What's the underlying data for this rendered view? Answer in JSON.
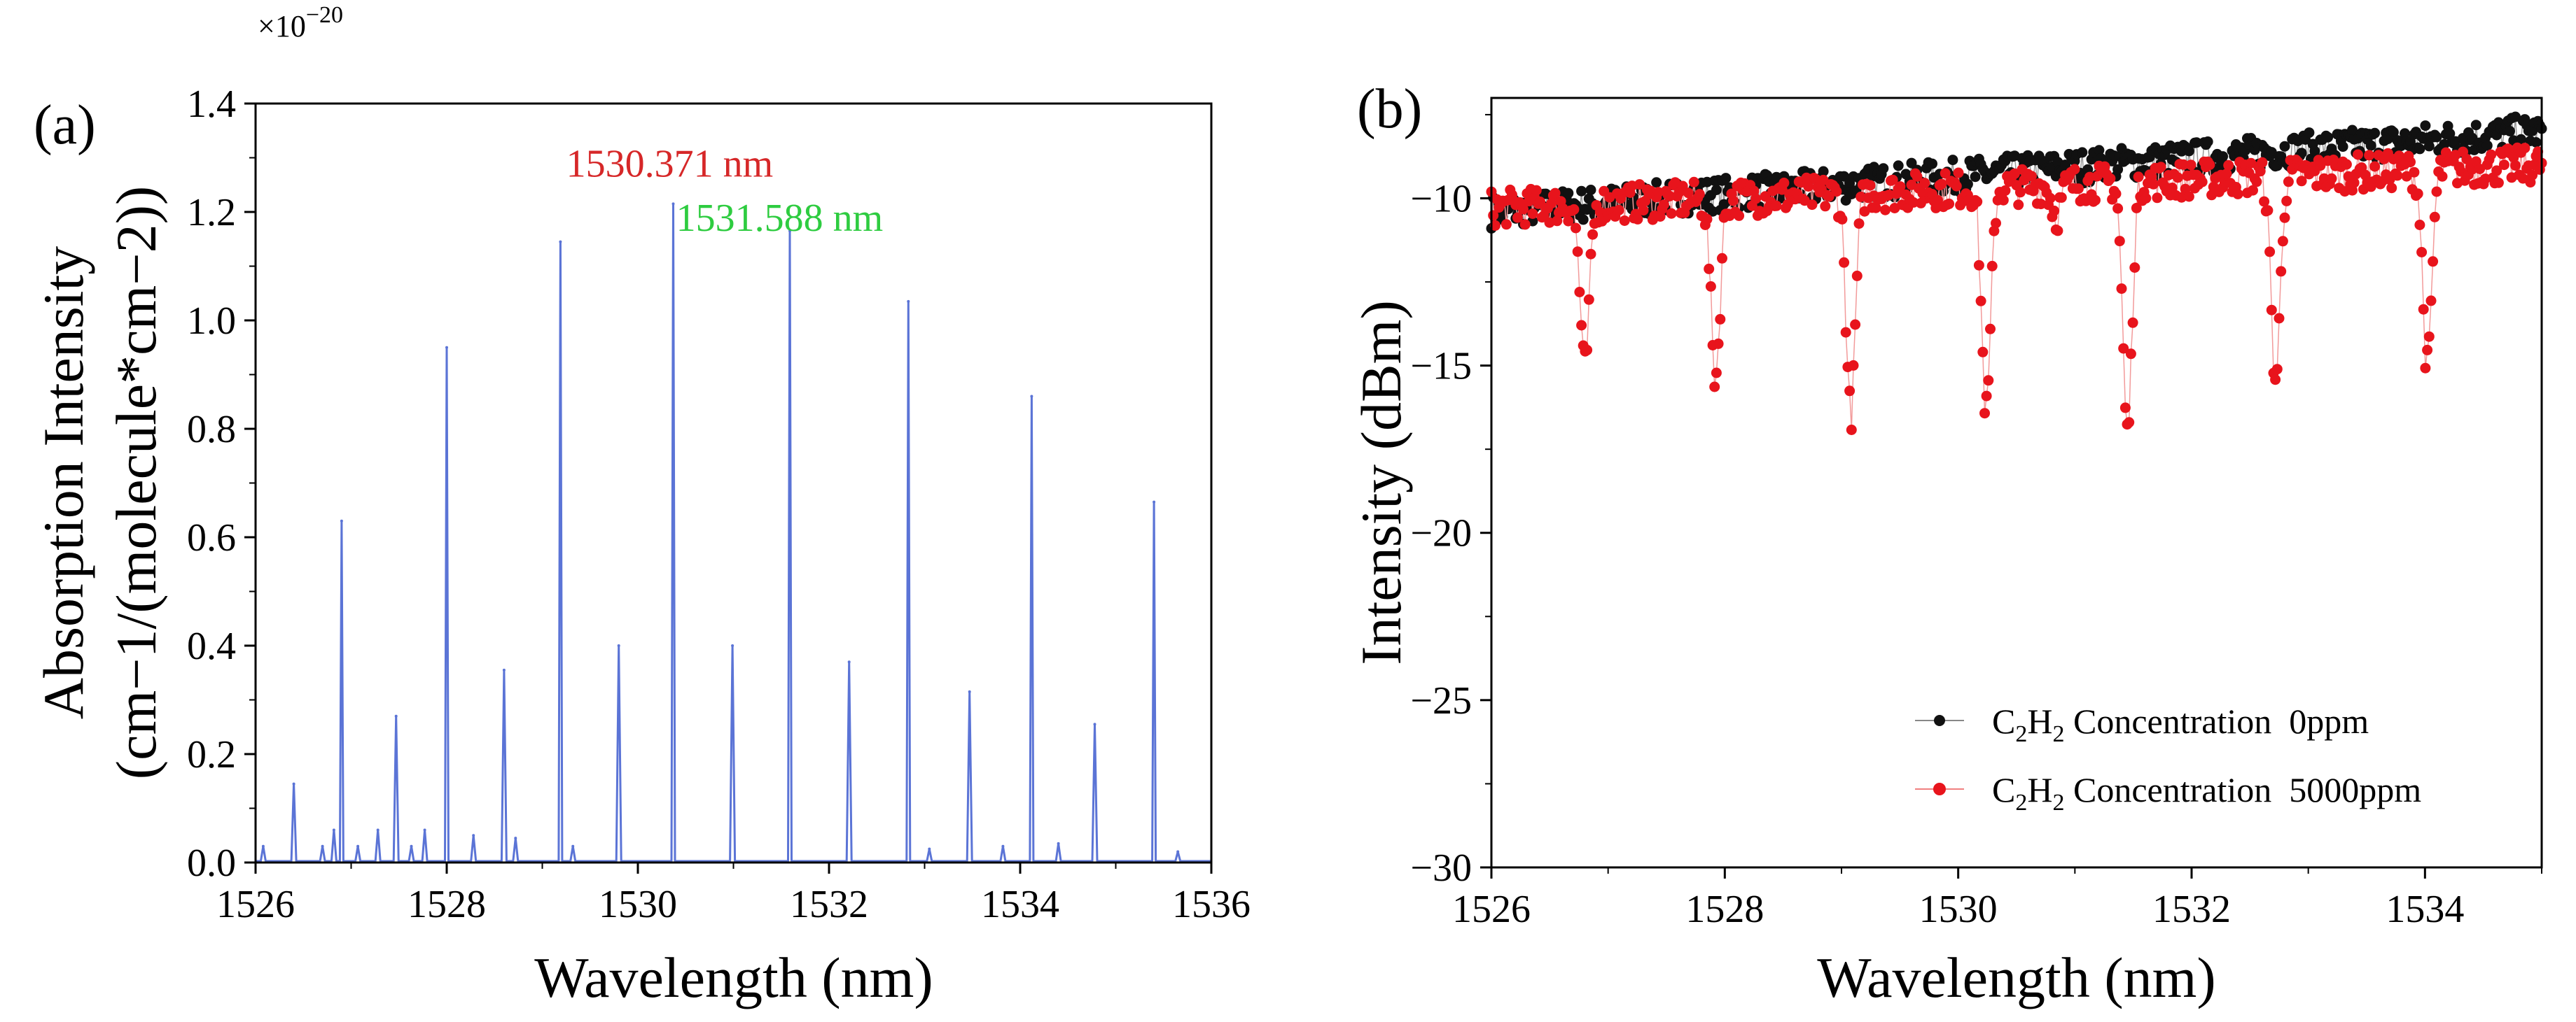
{
  "figure": {
    "panel_a_label": "(a)",
    "panel_b_label": "(b)"
  },
  "chart_data": [
    {
      "type": "line",
      "panel": "(a)",
      "xlabel": "Wavelength (nm)",
      "ylabel_line1": "Absorption Intensity",
      "ylabel_line2": "(cm−1/(molecule*cm−2))",
      "y_multiplier": "×10",
      "y_multiplier_exp": "−20",
      "xlim": [
        1526,
        1536
      ],
      "ylim": [
        0,
        1.4
      ],
      "x_ticks": [
        1526,
        1528,
        1530,
        1532,
        1534,
        1536
      ],
      "y_ticks": [
        0.0,
        0.2,
        0.4,
        0.6,
        0.8,
        1.0,
        1.2,
        1.4
      ],
      "x_tick_labels": [
        "1526",
        "1528",
        "1530",
        "1532",
        "1534",
        "1536"
      ],
      "y_tick_labels": [
        "0.0",
        "0.2",
        "0.4",
        "0.6",
        "0.8",
        "1.0",
        "1.2",
        "1.4"
      ],
      "grid": false,
      "line_color": "#5b74d6",
      "annotations": [
        {
          "text": "1530.371 nm",
          "color": "#d62728",
          "x": 1529.25,
          "y": 1.265
        },
        {
          "text": "1531.588 nm",
          "color": "#2ecc40",
          "x": 1530.4,
          "y": 1.165
        }
      ],
      "peaks": [
        {
          "x": 1526.08,
          "y": 0.03
        },
        {
          "x": 1526.4,
          "y": 0.145
        },
        {
          "x": 1526.7,
          "y": 0.03
        },
        {
          "x": 1526.82,
          "y": 0.06
        },
        {
          "x": 1526.9,
          "y": 0.63
        },
        {
          "x": 1527.07,
          "y": 0.03
        },
        {
          "x": 1527.28,
          "y": 0.06
        },
        {
          "x": 1527.47,
          "y": 0.27
        },
        {
          "x": 1527.63,
          "y": 0.03
        },
        {
          "x": 1527.77,
          "y": 0.06
        },
        {
          "x": 1528.0,
          "y": 0.95
        },
        {
          "x": 1528.28,
          "y": 0.05
        },
        {
          "x": 1528.6,
          "y": 0.355
        },
        {
          "x": 1528.72,
          "y": 0.045
        },
        {
          "x": 1529.19,
          "y": 1.145
        },
        {
          "x": 1529.32,
          "y": 0.03
        },
        {
          "x": 1529.8,
          "y": 0.4
        },
        {
          "x": 1530.37,
          "y": 1.215
        },
        {
          "x": 1530.99,
          "y": 0.4
        },
        {
          "x": 1531.59,
          "y": 1.165
        },
        {
          "x": 1532.21,
          "y": 0.37
        },
        {
          "x": 1532.83,
          "y": 1.035
        },
        {
          "x": 1533.05,
          "y": 0.025
        },
        {
          "x": 1533.47,
          "y": 0.315
        },
        {
          "x": 1533.82,
          "y": 0.03
        },
        {
          "x": 1534.12,
          "y": 0.86
        },
        {
          "x": 1534.4,
          "y": 0.035
        },
        {
          "x": 1534.78,
          "y": 0.255
        },
        {
          "x": 1535.4,
          "y": 0.665
        },
        {
          "x": 1535.65,
          "y": 0.02
        }
      ]
    },
    {
      "type": "scatter",
      "panel": "(b)",
      "xlabel": "Wavelength (nm)",
      "ylabel": "Intensity (dBm)",
      "xlim": [
        1526,
        1535
      ],
      "ylim": [
        -30,
        -7
      ],
      "x_ticks": [
        1526,
        1528,
        1530,
        1532,
        1534
      ],
      "y_ticks": [
        -30,
        -25,
        -20,
        -15,
        -10
      ],
      "x_tick_labels": [
        "1526",
        "1528",
        "1530",
        "1532",
        "1534"
      ],
      "y_tick_labels": [
        "−30",
        "−25",
        "−20",
        "−15",
        "−10"
      ],
      "grid": false,
      "legend_placement": "lower-right",
      "series": [
        {
          "name_prefix": "C",
          "name_sub1": "2",
          "name_mid": "H",
          "name_sub2": "2",
          "name_suffix": " Concentration  0ppm",
          "color": "#111111",
          "baseline_start": -10.4,
          "baseline_end": -8.0,
          "noise": 0.5,
          "dips": []
        },
        {
          "name_prefix": "C",
          "name_sub1": "2",
          "name_mid": "H",
          "name_sub2": "2",
          "name_suffix": " Concentration  5000ppm",
          "color": "#e8141c",
          "baseline_start": -10.3,
          "baseline_end": -9.0,
          "noise": 0.55,
          "dips": [
            {
              "x": 1526.8,
              "depth": 4.9
            },
            {
              "x": 1527.92,
              "depth": 5.3
            },
            {
              "x": 1529.08,
              "depth": 6.6
            },
            {
              "x": 1530.24,
              "depth": 6.7
            },
            {
              "x": 1530.84,
              "depth": 0.9
            },
            {
              "x": 1531.45,
              "depth": 7.5
            },
            {
              "x": 1532.72,
              "depth": 6.1
            },
            {
              "x": 1534.02,
              "depth": 5.9
            }
          ]
        }
      ]
    }
  ]
}
